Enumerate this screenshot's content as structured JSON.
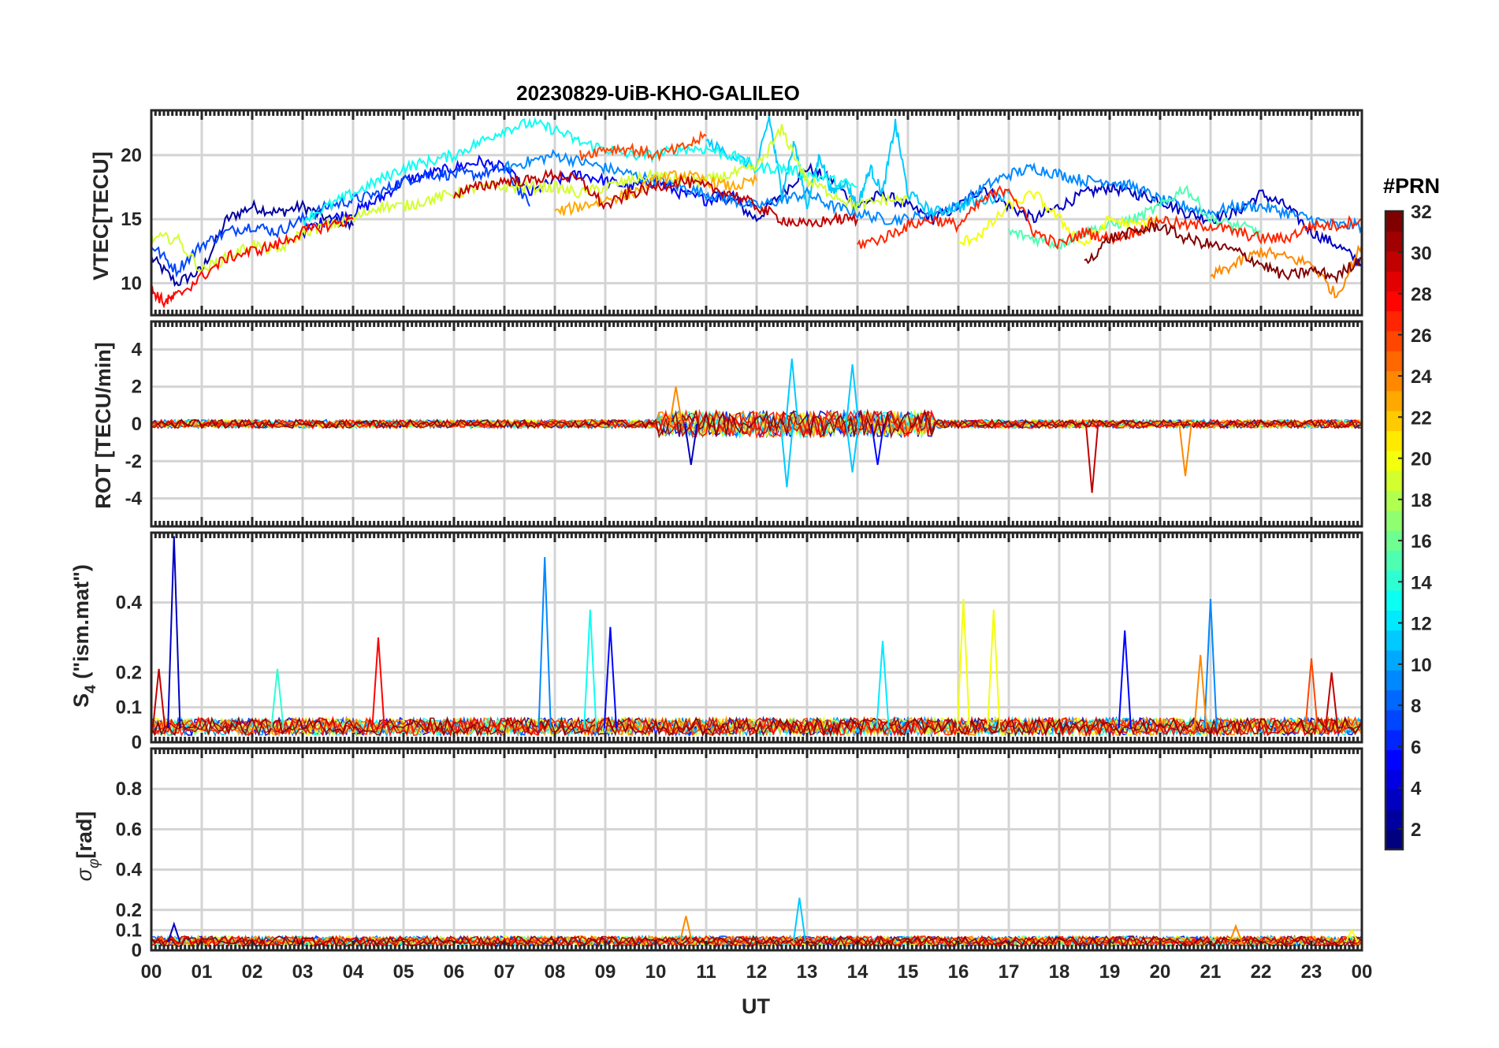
{
  "chart_data": {
    "type": "line",
    "title": "20230829-UiB-KHO-GALILEO",
    "xlabel": "UT",
    "x_tick_labels": [
      "00",
      "01",
      "02",
      "03",
      "04",
      "05",
      "06",
      "07",
      "08",
      "09",
      "10",
      "11",
      "12",
      "13",
      "14",
      "15",
      "16",
      "17",
      "18",
      "19",
      "20",
      "21",
      "22",
      "23",
      "00"
    ],
    "xlim": [
      0,
      24
    ],
    "colorbar": {
      "label": "#PRN",
      "range": [
        1,
        32
      ],
      "tick_labels": [
        "2",
        "4",
        "6",
        "8",
        "10",
        "12",
        "14",
        "16",
        "18",
        "20",
        "22",
        "24",
        "26",
        "28",
        "30",
        "32"
      ],
      "colormap": "jet"
    },
    "panels": [
      {
        "ylabel": "VTEC[TECU]",
        "ylim": [
          7.5,
          23.5
        ],
        "y_ticks": [
          10,
          15,
          20
        ],
        "y_tick_labels": [
          "10",
          "15",
          "20"
        ],
        "series": [
          {
            "name": "PRN 2",
            "prn": 2,
            "x": [
              0,
              0.5,
              1,
              1.5,
              2,
              2.5,
              3,
              3.5,
              4
            ],
            "y": [
              12,
              10,
              11,
              15,
              16,
              15.5,
              16,
              15,
              14.5
            ]
          },
          {
            "name": "PRN 3",
            "prn": 3,
            "x": [
              11,
              11.5,
              12,
              12.5,
              13,
              13.5,
              14,
              14.5,
              15,
              15.5,
              16,
              16.5,
              17,
              17.5,
              18,
              18.5,
              19,
              19.5,
              20,
              20.5,
              21,
              21.5,
              22,
              22.5,
              23,
              23.5,
              24
            ],
            "y": [
              17,
              16.5,
              15,
              17,
              19,
              18,
              16,
              17,
              16,
              15,
              16,
              17.5,
              16,
              15,
              16,
              17,
              17.5,
              17,
              16.5,
              15.5,
              15,
              15.5,
              17,
              16,
              14,
              13,
              11.5
            ]
          },
          {
            "name": "PRN 5",
            "prn": 5,
            "x": [
              3,
              3.5,
              4,
              4.5,
              5,
              5.5,
              6,
              6.5,
              7,
              7.5,
              8,
              8.5,
              9,
              9.5,
              10,
              10.5,
              11,
              11.5,
              12
            ],
            "y": [
              14,
              15,
              15.5,
              16.5,
              18,
              18.5,
              19,
              19.5,
              19,
              17,
              18,
              18.5,
              18,
              17.5,
              18,
              17,
              16.5,
              17,
              16
            ]
          },
          {
            "name": "PRN 7",
            "prn": 7,
            "x": [
              0,
              0.5,
              1,
              1.5,
              2,
              2.5,
              3,
              3.5,
              4,
              4.5,
              5,
              5.5,
              6,
              6.5,
              7,
              7.5
            ],
            "y": [
              13,
              11,
              13,
              14,
              14.5,
              14,
              15,
              16,
              16.5,
              17,
              18,
              18.5,
              18.5,
              18.5,
              19,
              16
            ]
          },
          {
            "name": "PRN 9",
            "prn": 9,
            "x": [
              7,
              7.5,
              8,
              8.5,
              9,
              9.5,
              10,
              10.5,
              11,
              11.5,
              12,
              12.5,
              13,
              13.5,
              14,
              14.5,
              15,
              15.5,
              16,
              16.5,
              17,
              17.5,
              18,
              18.5,
              19,
              19.5,
              20,
              20.5,
              21,
              21.5,
              22,
              22.5,
              23,
              23.5,
              24
            ],
            "y": [
              19,
              19.5,
              20,
              19.5,
              19,
              18.5,
              18,
              17.5,
              17,
              16.5,
              16,
              16.5,
              17,
              16,
              15.5,
              15,
              15,
              15.5,
              16,
              17.5,
              18.5,
              19,
              18.5,
              18,
              18,
              17.5,
              16.5,
              16,
              15.5,
              16,
              16,
              15.5,
              15,
              14.5,
              14.5
            ]
          },
          {
            "name": "PRN 11",
            "prn": 11,
            "x": [
              11,
              11.5,
              12,
              12.25,
              12.5,
              12.75,
              13,
              13.25,
              13.5,
              13.75,
              14,
              14.25,
              14.5,
              14.75,
              15,
              15.5,
              16,
              16.5,
              17
            ],
            "y": [
              21,
              20,
              19,
              23,
              17,
              21,
              16,
              20,
              17,
              18,
              16,
              19,
              17,
              22.5,
              17,
              15.5,
              16,
              16.5,
              17
            ]
          },
          {
            "name": "PRN 13",
            "prn": 13,
            "x": [
              3,
              3.5,
              4,
              4.5,
              5,
              5.5,
              6,
              6.5,
              7,
              7.5,
              8,
              8.5,
              9,
              9.5,
              10,
              10.5,
              11,
              11.5,
              12,
              12.5,
              13,
              13.5,
              14
            ],
            "y": [
              15,
              16,
              17,
              18,
              19,
              19.5,
              20,
              21,
              22,
              22.5,
              22,
              21,
              20.5,
              20,
              20,
              20.5,
              20.5,
              20,
              19,
              19,
              18.5,
              18,
              17.5
            ]
          },
          {
            "name": "PRN 15",
            "prn": 15,
            "x": [
              17,
              17.5,
              18,
              18.5,
              19,
              19.5,
              20,
              20.5,
              21,
              21.5,
              22
            ],
            "y": [
              14,
              13.5,
              13,
              14,
              14.5,
              15,
              16,
              17.5,
              15,
              14.5,
              14
            ]
          },
          {
            "name": "PRN 19",
            "prn": 19,
            "x": [
              0,
              0.5,
              1,
              1.5,
              2,
              2.5,
              3,
              3.5,
              4,
              4.5,
              5,
              5.5,
              6,
              6.5,
              7,
              7.5,
              8,
              8.5,
              9,
              9.5,
              10,
              10.5,
              11,
              11.5,
              12,
              12.5,
              13,
              13.5,
              14,
              14.5,
              15
            ],
            "y": [
              13.5,
              13.5,
              11,
              12,
              13,
              12.5,
              14,
              14.5,
              15,
              16,
              16,
              16.5,
              17,
              17.5,
              17.5,
              17.5,
              17.5,
              17,
              17.5,
              18,
              18.5,
              18,
              18,
              18.5,
              19,
              22,
              18,
              17,
              16,
              16.5,
              16.5
            ]
          },
          {
            "name": "PRN 20",
            "prn": 20,
            "x": [
              16,
              16.5,
              17,
              17.5,
              18,
              18.5,
              19,
              19.5,
              20
            ],
            "y": [
              13,
              14,
              16,
              17,
              15,
              13,
              15,
              14.5,
              15
            ]
          },
          {
            "name": "PRN 23",
            "prn": 23,
            "x": [
              8,
              8.5,
              9,
              9.5,
              10,
              10.5,
              11,
              11.5,
              12
            ],
            "y": [
              15.5,
              16,
              16.5,
              17,
              18,
              18.5,
              18,
              17.5,
              18
            ]
          },
          {
            "name": "PRN 24",
            "prn": 24,
            "x": [
              21,
              21.5,
              22,
              22.5,
              23,
              23.5,
              24
            ],
            "y": [
              10.5,
              11.5,
              12.5,
              12,
              11.5,
              9,
              13
            ]
          },
          {
            "name": "PRN 26",
            "prn": 26,
            "x": [
              8.5,
              9,
              9.5,
              10,
              10.5,
              11
            ],
            "y": [
              20,
              20.5,
              20.5,
              20,
              20.5,
              21.5
            ]
          },
          {
            "name": "PRN 27",
            "prn": 27,
            "x": [
              14,
              14.5,
              15,
              15.5,
              16,
              16.5,
              17,
              17.5,
              18,
              18.5,
              19,
              19.5,
              20,
              20.5,
              21,
              21.5,
              22,
              22.5,
              23,
              23.5,
              24
            ],
            "y": [
              13,
              13.5,
              14.5,
              15,
              14.5,
              16.5,
              17.5,
              14,
              13,
              14,
              13.5,
              14,
              15,
              14.5,
              14.5,
              14,
              13.5,
              13.5,
              14.5,
              14.5,
              15
            ]
          },
          {
            "name": "PRN 28",
            "prn": 28,
            "x": [
              0,
              0.25,
              0.5,
              1,
              1.5,
              2,
              2.5,
              3,
              3.5,
              4
            ],
            "y": [
              9.5,
              8.5,
              9,
              10.5,
              12,
              12.5,
              13,
              14,
              14.5,
              15
            ]
          },
          {
            "name": "PRN 30",
            "prn": 30,
            "x": [
              6,
              6.5,
              7,
              7.5,
              8,
              8.5,
              9,
              9.5,
              10,
              10.5,
              11,
              11.5,
              12,
              12.5,
              13,
              13.5,
              14
            ],
            "y": [
              17,
              17.5,
              18,
              18,
              18.5,
              18,
              16,
              17,
              17.5,
              18,
              17.5,
              17,
              16,
              15,
              14.5,
              15,
              15
            ]
          },
          {
            "name": "PRN 32",
            "prn": 32,
            "x": [
              18.5,
              19,
              19.5,
              20,
              20.5,
              21,
              21.5,
              22,
              22.5,
              23,
              23.5,
              24
            ],
            "y": [
              11.5,
              13.5,
              14,
              14.5,
              13.5,
              13,
              12.5,
              11.5,
              10.5,
              11,
              10.5,
              12
            ]
          }
        ]
      },
      {
        "ylabel": "ROT [TECU/min]",
        "ylim": [
          -5.5,
          5.5
        ],
        "y_ticks": [
          -4,
          -2,
          0,
          2,
          4
        ],
        "y_tick_labels": [
          "-4",
          "-2",
          "0",
          "2",
          "4"
        ],
        "spikes": [
          {
            "prn": 11,
            "x": 12.7,
            "y": 3.5
          },
          {
            "prn": 11,
            "x": 12.6,
            "y": -3.4
          },
          {
            "prn": 11,
            "x": 13.9,
            "y": 3.2
          },
          {
            "prn": 11,
            "x": 13.9,
            "y": -2.6
          },
          {
            "prn": 5,
            "x": 14.4,
            "y": -2.2
          },
          {
            "prn": 30,
            "x": 18.65,
            "y": -3.7
          },
          {
            "prn": 24,
            "x": 20.5,
            "y": -2.8
          },
          {
            "prn": 3,
            "x": 10.7,
            "y": -2.2
          },
          {
            "prn": 24,
            "x": 10.4,
            "y": 2.0
          }
        ]
      },
      {
        "ylabel": "S4 (\"ism.mat\")",
        "ylabel_main": "S",
        "ylabel_sub": "4",
        "ylabel_rest": " (\"ism.mat\")",
        "ylim": [
          0,
          0.6
        ],
        "y_ticks": [
          0,
          0.1,
          0.2,
          0.4
        ],
        "y_tick_labels": [
          "0",
          "0.1",
          "0.2",
          "0.4"
        ],
        "spikes": [
          {
            "prn": 3,
            "x": 0.45,
            "y": 0.59
          },
          {
            "prn": 9,
            "x": 7.8,
            "y": 0.53
          },
          {
            "prn": 13,
            "x": 8.7,
            "y": 0.38
          },
          {
            "prn": 5,
            "x": 9.1,
            "y": 0.33
          },
          {
            "prn": 28,
            "x": 4.5,
            "y": 0.3
          },
          {
            "prn": 20,
            "x": 16.1,
            "y": 0.41
          },
          {
            "prn": 20,
            "x": 16.7,
            "y": 0.38
          },
          {
            "prn": 9,
            "x": 21.0,
            "y": 0.41
          },
          {
            "prn": 5,
            "x": 19.3,
            "y": 0.32
          },
          {
            "prn": 12,
            "x": 14.5,
            "y": 0.29
          },
          {
            "prn": 24,
            "x": 20.8,
            "y": 0.25
          },
          {
            "prn": 26,
            "x": 23.0,
            "y": 0.24
          },
          {
            "prn": 30,
            "x": 23.4,
            "y": 0.2
          },
          {
            "prn": 14,
            "x": 2.5,
            "y": 0.21
          },
          {
            "prn": 30,
            "x": 0.15,
            "y": 0.21
          }
        ]
      },
      {
        "ylabel": "σφ[rad]",
        "ylabel_sigma": "σ",
        "ylabel_phi": "φ",
        "ylabel_rest": "[rad]",
        "ylim": [
          0,
          1.0
        ],
        "y_ticks": [
          0,
          0.1,
          0.2,
          0.4,
          0.6,
          0.8
        ],
        "y_tick_labels": [
          "0",
          "0.1",
          "0.2",
          "0.4",
          "0.6",
          "0.8"
        ],
        "spikes": [
          {
            "prn": 11,
            "x": 12.85,
            "y": 0.26
          },
          {
            "prn": 24,
            "x": 10.6,
            "y": 0.17
          },
          {
            "prn": 3,
            "x": 0.45,
            "y": 0.13
          },
          {
            "prn": 24,
            "x": 21.5,
            "y": 0.12
          },
          {
            "prn": 20,
            "x": 23.8,
            "y": 0.1
          }
        ]
      }
    ]
  }
}
